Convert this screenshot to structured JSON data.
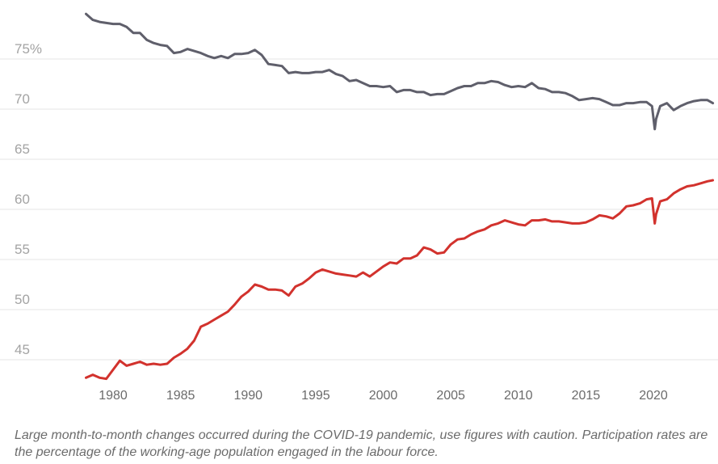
{
  "chart_data": {
    "type": "line",
    "title": "",
    "xlabel": "",
    "ylabel": "",
    "xlim": [
      1977.5,
      2024.7
    ],
    "ylim": [
      42.3,
      80.5
    ],
    "yticks": [
      45,
      50,
      55,
      60,
      65,
      70,
      75
    ],
    "ytick_labels": [
      "45",
      "50",
      "55",
      "60",
      "65",
      "70",
      "75%"
    ],
    "xticks": [
      1980,
      1985,
      1990,
      1995,
      2000,
      2005,
      2010,
      2015,
      2020
    ],
    "xtick_labels": [
      "1980",
      "1985",
      "1990",
      "1995",
      "2000",
      "2005",
      "2010",
      "2015",
      "2020"
    ],
    "grid": true,
    "legend": "none",
    "series": [
      {
        "color": "#5f5f6b",
        "x": [
          1978.0,
          1978.5,
          1979.0,
          1979.5,
          1980.0,
          1980.5,
          1981.0,
          1981.5,
          1982.0,
          1982.5,
          1983.0,
          1983.5,
          1984.0,
          1984.5,
          1985.0,
          1985.5,
          1986.0,
          1986.5,
          1987.0,
          1987.5,
          1988.0,
          1988.5,
          1989.0,
          1989.5,
          1990.0,
          1990.5,
          1991.0,
          1991.5,
          1992.0,
          1992.5,
          1993.0,
          1993.5,
          1994.0,
          1994.5,
          1995.0,
          1995.5,
          1996.0,
          1996.5,
          1997.0,
          1997.5,
          1998.0,
          1998.5,
          1999.0,
          1999.5,
          2000.0,
          2000.5,
          2001.0,
          2001.5,
          2002.0,
          2002.5,
          2003.0,
          2003.5,
          2004.0,
          2004.5,
          2005.0,
          2005.5,
          2006.0,
          2006.5,
          2007.0,
          2007.5,
          2008.0,
          2008.5,
          2009.0,
          2009.5,
          2010.0,
          2010.5,
          2011.0,
          2011.5,
          2012.0,
          2012.5,
          2013.0,
          2013.5,
          2014.0,
          2014.5,
          2015.0,
          2015.5,
          2016.0,
          2016.5,
          2017.0,
          2017.5,
          2018.0,
          2018.5,
          2019.0,
          2019.5,
          2019.9,
          2020.1,
          2020.2,
          2020.5,
          2021.0,
          2021.5,
          2022.0,
          2022.5,
          2023.0,
          2023.5,
          2024.0,
          2024.4
        ],
        "values": [
          79.5,
          78.9,
          78.7,
          78.6,
          78.5,
          78.5,
          78.2,
          77.6,
          77.6,
          76.9,
          76.6,
          76.4,
          76.3,
          75.6,
          75.7,
          76.0,
          75.8,
          75.6,
          75.3,
          75.1,
          75.3,
          75.1,
          75.5,
          75.5,
          75.6,
          75.9,
          75.4,
          74.5,
          74.4,
          74.3,
          73.6,
          73.7,
          73.6,
          73.6,
          73.7,
          73.7,
          73.9,
          73.5,
          73.3,
          72.8,
          72.9,
          72.6,
          72.3,
          72.3,
          72.2,
          72.3,
          71.7,
          71.9,
          71.9,
          71.7,
          71.7,
          71.4,
          71.5,
          71.5,
          71.8,
          72.1,
          72.3,
          72.3,
          72.6,
          72.6,
          72.8,
          72.7,
          72.4,
          72.2,
          72.3,
          72.2,
          72.6,
          72.1,
          72.0,
          71.7,
          71.7,
          71.6,
          71.3,
          70.9,
          71.0,
          71.1,
          71.0,
          70.7,
          70.4,
          70.4,
          70.6,
          70.6,
          70.7,
          70.7,
          70.3,
          68.0,
          69.0,
          70.3,
          70.6,
          69.9,
          70.3,
          70.6,
          70.8,
          70.9,
          70.9,
          70.6
        ]
      },
      {
        "color": "#d2322d",
        "x": [
          1978.0,
          1978.5,
          1979.0,
          1979.5,
          1980.0,
          1980.5,
          1981.0,
          1981.5,
          1982.0,
          1982.5,
          1983.0,
          1983.5,
          1984.0,
          1984.5,
          1985.0,
          1985.5,
          1986.0,
          1986.5,
          1987.0,
          1987.5,
          1988.0,
          1988.5,
          1989.0,
          1989.5,
          1990.0,
          1990.5,
          1991.0,
          1991.5,
          1992.0,
          1992.5,
          1993.0,
          1993.5,
          1994.0,
          1994.5,
          1995.0,
          1995.5,
          1996.0,
          1996.5,
          1997.0,
          1997.5,
          1998.0,
          1998.5,
          1999.0,
          1999.5,
          2000.0,
          2000.5,
          2001.0,
          2001.5,
          2002.0,
          2002.5,
          2003.0,
          2003.5,
          2004.0,
          2004.5,
          2005.0,
          2005.5,
          2006.0,
          2006.5,
          2007.0,
          2007.5,
          2008.0,
          2008.5,
          2009.0,
          2009.5,
          2010.0,
          2010.5,
          2011.0,
          2011.5,
          2012.0,
          2012.5,
          2013.0,
          2013.5,
          2014.0,
          2014.5,
          2015.0,
          2015.5,
          2016.0,
          2016.5,
          2017.0,
          2017.5,
          2018.0,
          2018.5,
          2019.0,
          2019.5,
          2019.9,
          2020.1,
          2020.2,
          2020.5,
          2021.0,
          2021.5,
          2022.0,
          2022.5,
          2023.0,
          2023.5,
          2024.0,
          2024.4
        ],
        "values": [
          43.2,
          43.5,
          43.2,
          43.1,
          44.0,
          44.9,
          44.4,
          44.6,
          44.8,
          44.5,
          44.6,
          44.5,
          44.6,
          45.2,
          45.6,
          46.1,
          46.9,
          48.3,
          48.6,
          49.0,
          49.4,
          49.8,
          50.5,
          51.3,
          51.8,
          52.5,
          52.3,
          52.0,
          52.0,
          51.9,
          51.4,
          52.3,
          52.6,
          53.1,
          53.7,
          54.0,
          53.8,
          53.6,
          53.5,
          53.4,
          53.3,
          53.7,
          53.3,
          53.8,
          54.3,
          54.7,
          54.6,
          55.1,
          55.1,
          55.4,
          56.2,
          56.0,
          55.6,
          55.7,
          56.5,
          57.0,
          57.1,
          57.5,
          57.8,
          58.0,
          58.4,
          58.6,
          58.9,
          58.7,
          58.5,
          58.4,
          58.9,
          58.9,
          59.0,
          58.8,
          58.8,
          58.7,
          58.6,
          58.6,
          58.7,
          59.0,
          59.4,
          59.3,
          59.1,
          59.6,
          60.3,
          60.4,
          60.6,
          61.0,
          61.1,
          58.6,
          59.5,
          60.8,
          61.0,
          61.6,
          62.0,
          62.3,
          62.4,
          62.6,
          62.8,
          62.9
        ]
      }
    ]
  },
  "note": "Large month-to-month changes occurred during the COVID-19 pandemic, use figures with caution. Participation rates are the percentage of the working-age population engaged in the labour force."
}
